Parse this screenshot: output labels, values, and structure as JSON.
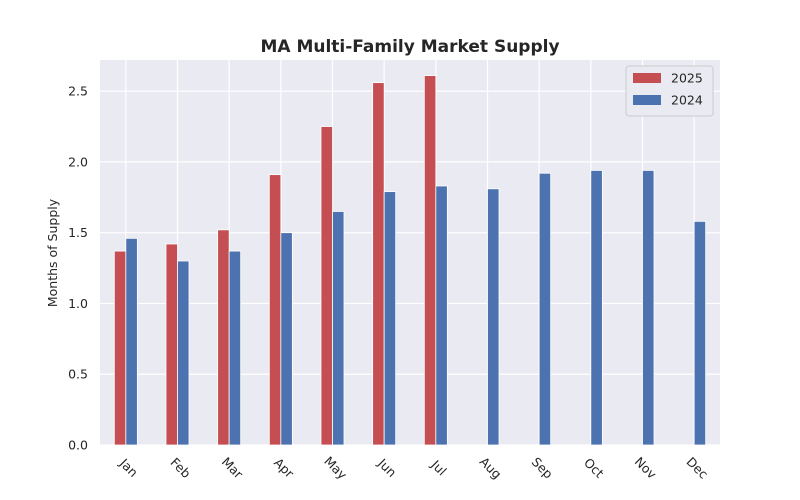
{
  "chart_data": {
    "type": "bar",
    "title": "MA Multi-Family Market Supply",
    "xlabel": "",
    "ylabel": "Months of Supply",
    "categories": [
      "Jan",
      "Feb",
      "Mar",
      "Apr",
      "May",
      "Jun",
      "Jul",
      "Aug",
      "Sep",
      "Oct",
      "Nov",
      "Dec"
    ],
    "series": [
      {
        "name": "2025",
        "color": "#c44e52",
        "values": [
          1.37,
          1.42,
          1.52,
          1.91,
          2.25,
          2.56,
          2.61,
          null,
          null,
          null,
          null,
          null
        ]
      },
      {
        "name": "2024",
        "color": "#4c72b0",
        "values": [
          1.46,
          1.3,
          1.37,
          1.5,
          1.65,
          1.79,
          1.83,
          1.81,
          1.92,
          1.94,
          1.94,
          1.58
        ]
      }
    ],
    "ylim": [
      0,
      2.72
    ],
    "yticks": [
      "0.0",
      "0.5",
      "1.0",
      "1.5",
      "2.0",
      "2.5"
    ],
    "grid": true,
    "legend_position": "top-right",
    "background": "#eaeaf2"
  }
}
